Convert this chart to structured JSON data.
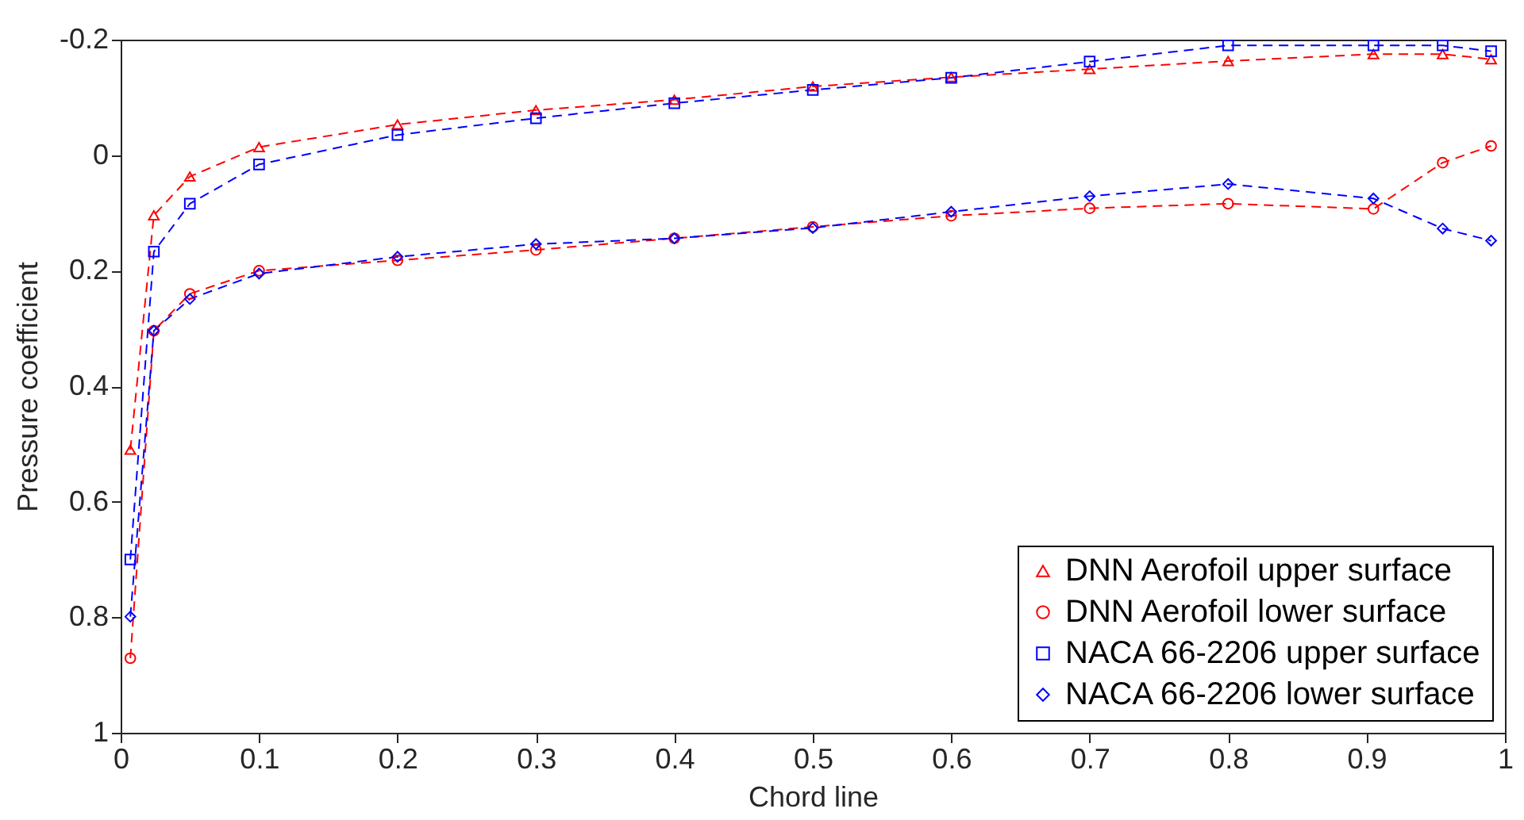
{
  "chart_data": {
    "type": "line",
    "xlabel": "Chord line",
    "ylabel": "Pressure coefficient",
    "x": [
      0.007,
      0.024,
      0.05,
      0.1,
      0.2,
      0.3,
      0.4,
      0.5,
      0.6,
      0.7,
      0.8,
      0.905,
      0.955,
      0.99
    ],
    "series": [
      {
        "name": "DNN Aerofoil upper surface",
        "color": "#ff0000",
        "marker": "triangle",
        "values": [
          0.51,
          0.104,
          0.037,
          -0.014,
          -0.053,
          -0.078,
          -0.096,
          -0.119,
          -0.135,
          -0.149,
          -0.163,
          -0.175,
          -0.175,
          -0.166
        ]
      },
      {
        "name": "DNN Aerofoil lower surface",
        "color": "#ff0000",
        "marker": "circle",
        "values": [
          0.871,
          0.304,
          0.24,
          0.2,
          0.182,
          0.164,
          0.144,
          0.124,
          0.105,
          0.092,
          0.084,
          0.093,
          0.013,
          -0.016
        ]
      },
      {
        "name": "NACA 66-2206 upper surface",
        "color": "#0000ff",
        "marker": "square",
        "values": [
          0.7,
          0.167,
          0.084,
          0.016,
          -0.035,
          -0.064,
          -0.09,
          -0.113,
          -0.134,
          -0.162,
          -0.19,
          -0.19,
          -0.19,
          -0.18
        ]
      },
      {
        "name": "NACA 66-2206 lower surface",
        "color": "#0000ff",
        "marker": "diamond",
        "values": [
          0.799,
          0.304,
          0.249,
          0.205,
          0.176,
          0.154,
          0.144,
          0.126,
          0.098,
          0.071,
          0.05,
          0.075,
          0.127,
          0.148
        ]
      }
    ],
    "xlim": [
      0,
      1
    ],
    "xticks": [
      0,
      0.1,
      0.2,
      0.3,
      0.4,
      0.5,
      0.6,
      0.7,
      0.8,
      0.9,
      1
    ],
    "ylim": [
      1,
      -0.2
    ],
    "yticks": [
      -0.2,
      0,
      0.2,
      0.4,
      0.6,
      0.8,
      1
    ],
    "grid": false,
    "legend": "bottom right",
    "line_style": "dashed"
  }
}
